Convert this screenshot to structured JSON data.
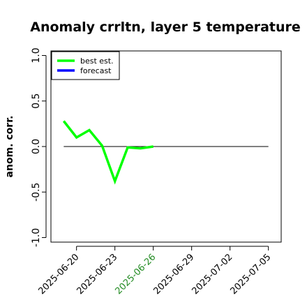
{
  "chart_data": {
    "type": "line",
    "title": "Anomaly crrltn, layer 5 temperature",
    "ylabel": "anom. corr.",
    "xlabel": "",
    "ylim": [
      -1.0,
      1.0
    ],
    "yticks": [
      -1.0,
      -0.5,
      0.0,
      0.5,
      1.0
    ],
    "ytick_labels": [
      "-1.0",
      "-0.5",
      "0.0",
      "0.5",
      "1.0"
    ],
    "xlim": [
      "2025-06-18",
      "2025-07-06"
    ],
    "xticks": [
      {
        "label": "2025-06-20",
        "date": "2025-06-20",
        "color": "#000000"
      },
      {
        "label": "2025-06-23",
        "date": "2025-06-23",
        "color": "#000000"
      },
      {
        "label": "2025-06-26",
        "date": "2025-06-26",
        "color": "#228b22"
      },
      {
        "label": "2025-06-29",
        "date": "2025-06-29",
        "color": "#000000"
      },
      {
        "label": "2025-07-02",
        "date": "2025-07-02",
        "color": "#000000"
      },
      {
        "label": "2025-07-05",
        "date": "2025-07-05",
        "color": "#000000"
      }
    ],
    "reference_line": {
      "y": 0.0,
      "from": "2025-06-19",
      "to": "2025-07-05",
      "color": "#000000"
    },
    "series": [
      {
        "name": "best est.",
        "color": "#00ff00",
        "points": [
          {
            "x": "2025-06-19",
            "y": 0.28
          },
          {
            "x": "2025-06-20",
            "y": 0.1
          },
          {
            "x": "2025-06-21",
            "y": 0.18
          },
          {
            "x": "2025-06-22",
            "y": 0.01
          },
          {
            "x": "2025-06-23",
            "y": -0.38
          },
          {
            "x": "2025-06-24",
            "y": -0.01
          },
          {
            "x": "2025-06-25",
            "y": -0.02
          },
          {
            "x": "2025-06-26",
            "y": 0.0
          }
        ]
      },
      {
        "name": "forecast",
        "color": "#0000ff",
        "points": []
      }
    ],
    "legend": {
      "position": "top-left",
      "entries": [
        "best est.",
        "forecast"
      ]
    },
    "grid": false
  }
}
